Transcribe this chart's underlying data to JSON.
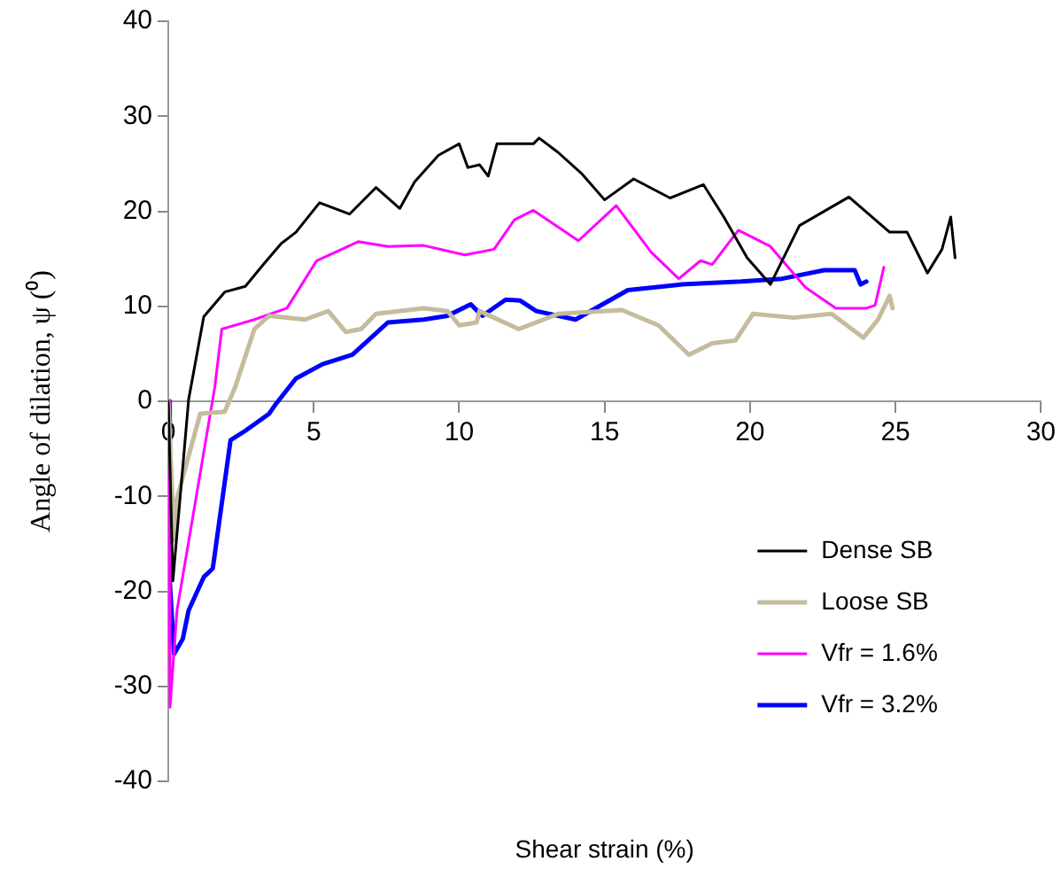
{
  "chart_data": {
    "type": "line",
    "xlabel": "Shear strain (%)",
    "ylabel": "Angle of dilation, ψ (⁰)",
    "xlim": [
      0,
      30
    ],
    "xticks": [
      0,
      5,
      10,
      15,
      20,
      25,
      30
    ],
    "ylim": [
      -40,
      40
    ],
    "yticks": [
      -40,
      -30,
      -20,
      -10,
      0,
      10,
      20,
      30,
      40
    ],
    "grid": false,
    "legend": "bottom right",
    "marker": "none",
    "line_style": "solid",
    "series": [
      {
        "name": "Dense SB",
        "color": "#000000",
        "x": [
          0,
          0.16,
          0.7,
          1.22,
          1.94,
          2.65,
          3.27,
          3.88,
          4.39,
          5.2,
          6.23,
          7.14,
          7.96,
          8.47,
          9.29,
          10,
          10.3,
          10.7,
          11,
          11.3,
          12.55,
          12.75,
          13.4,
          14.2,
          15,
          16,
          17.25,
          18.4,
          19.1,
          19.9,
          20.7,
          21.7,
          23.4,
          24.8,
          25.4,
          26.1,
          26.6,
          26.9,
          27.05
        ],
        "values": [
          0,
          -18.9,
          0.2,
          8.9,
          11.5,
          12.1,
          14.4,
          16.6,
          17.8,
          20.9,
          19.7,
          22.5,
          20.3,
          23.1,
          25.9,
          27.1,
          24.6,
          24.9,
          23.7,
          27.1,
          27.1,
          27.7,
          26.2,
          24,
          21.2,
          23.4,
          21.4,
          22.8,
          19.4,
          15.1,
          12.3,
          18.5,
          21.5,
          17.8,
          17.8,
          13.5,
          16,
          19.4,
          15.1
        ]
      },
      {
        "name": "Loose SB",
        "color": "#c4bc9c",
        "x": [
          0,
          0.2,
          0.3,
          1.1,
          1.94,
          2.3,
          2.96,
          3.47,
          4.7,
          5.5,
          6.1,
          6.63,
          7.14,
          8.78,
          9.6,
          10,
          10.6,
          10.7,
          12.05,
          13.4,
          15.6,
          16.85,
          17.9,
          18.7,
          19.5,
          20.1,
          21.5,
          22.8,
          23.9,
          24.4,
          24.8,
          24.9
        ],
        "values": [
          0,
          -14.6,
          -10.2,
          -1.3,
          -1.1,
          1.5,
          7.6,
          9,
          8.6,
          9.5,
          7.3,
          7.6,
          9.2,
          9.8,
          9.5,
          8,
          8.3,
          9.5,
          7.6,
          9.2,
          9.6,
          8,
          4.9,
          6.1,
          6.4,
          9.2,
          8.8,
          9.2,
          6.7,
          8.6,
          11.1,
          9.8
        ]
      },
      {
        "name": "Vfr = 1.6%",
        "color": "#ff00ff",
        "x": [
          0,
          0.06,
          0.3,
          1.6,
          1.84,
          2.96,
          4.08,
          5.1,
          6.53,
          7.55,
          8.78,
          10.2,
          11.2,
          11.9,
          12.55,
          14.1,
          15.4,
          16.6,
          17.55,
          18.3,
          18.7,
          19.6,
          20.7,
          21.9,
          22.95,
          24,
          24.3,
          24.6
        ],
        "values": [
          0,
          -32.2,
          -22,
          1.5,
          7.6,
          8.6,
          9.8,
          14.8,
          16.8,
          16.3,
          16.4,
          15.4,
          16,
          19.1,
          20.1,
          16.9,
          20.6,
          15.7,
          12.9,
          14.8,
          14.4,
          18,
          16.3,
          12,
          9.8,
          9.8,
          10.1,
          14.1
        ]
      },
      {
        "name": "Vfr = 3.2%",
        "color": "#0000ff",
        "x": [
          0,
          0.05,
          0.2,
          0.5,
          0.7,
          1.22,
          1.53,
          2.14,
          2.65,
          3.47,
          3.67,
          4.39,
          5.3,
          6.33,
          7.55,
          8.78,
          9.6,
          10.4,
          10.8,
          11.6,
          12.1,
          12.65,
          14,
          15.8,
          17.65,
          19.7,
          21.1,
          22.55,
          23.6,
          23.8,
          24
        ],
        "values": [
          0,
          -18.9,
          -26.6,
          -25,
          -22,
          -18.5,
          -17.6,
          -4.1,
          -3.1,
          -1.3,
          -0.4,
          2.4,
          3.9,
          4.9,
          8.3,
          8.6,
          9,
          10.2,
          9,
          10.7,
          10.6,
          9.5,
          8.6,
          11.7,
          12.3,
          12.6,
          12.9,
          13.8,
          13.8,
          12.3,
          12.6
        ]
      }
    ]
  }
}
